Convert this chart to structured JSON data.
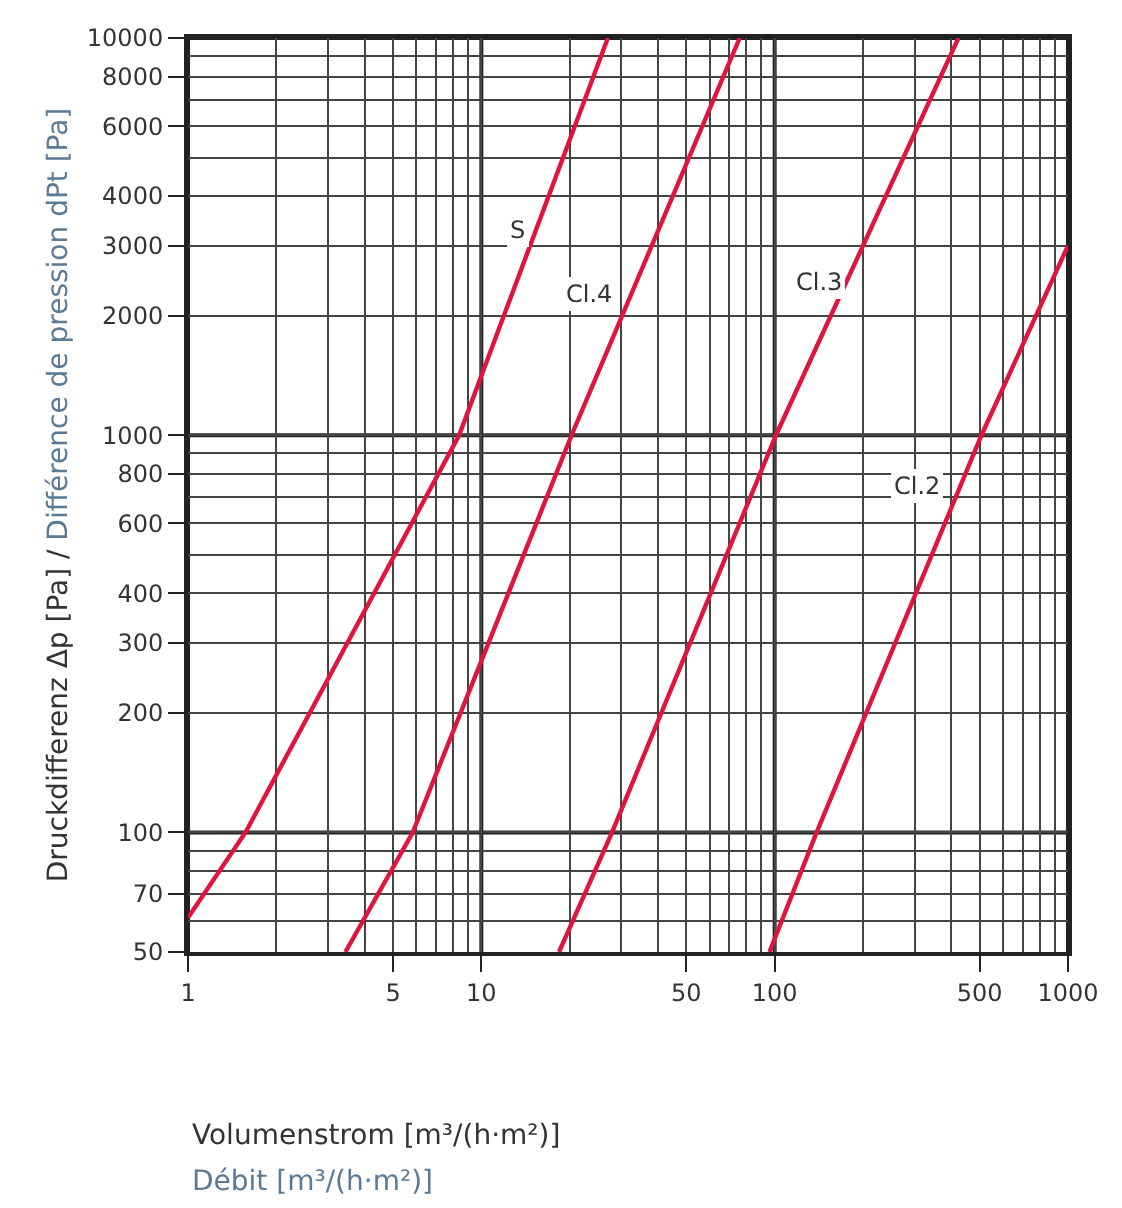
{
  "chart_data": {
    "type": "line",
    "xlabel": "Volumenstrom [m³/(h·m²)]\nDébit [m³/(h·m²)]",
    "ylabel": "Druckdifferenz Δp [Pa] / Différence de pression dPt [Pa]",
    "log": "xy",
    "grid": true,
    "marker": "none",
    "line_style": "solid",
    "xlim": [
      1,
      1000
    ],
    "xticks": [
      1,
      5,
      10,
      50,
      100,
      500,
      1000
    ],
    "ylim": [
      50,
      10000
    ],
    "yticks": [
      50,
      70,
      100,
      200,
      300,
      400,
      600,
      800,
      1000,
      2000,
      3000,
      4000,
      6000,
      8000,
      10000
    ],
    "series": [
      {
        "color": "#e0143c",
        "x": [
          1,
          1.57,
          8.4,
          27
        ],
        "values": [
          61,
          100,
          1000,
          10000
        ]
      },
      {
        "color": "#e0143c",
        "x": [
          3.44,
          5.84,
          20.3,
          76
        ],
        "values": [
          50,
          100,
          1000,
          10000
        ]
      },
      {
        "color": "#e0143c",
        "x": [
          18.4,
          27.9,
          101,
          423
        ],
        "values": [
          50,
          100,
          1000,
          10000
        ]
      },
      {
        "color": "#e0143c",
        "x": [
          96,
          139,
          507,
          1000
        ],
        "values": [
          50,
          100,
          1000,
          3000
        ]
      }
    ],
    "annotations": [
      {
        "text": "S",
        "x": 13.4,
        "y": 3300
      },
      {
        "text": "Cl.4",
        "x": 23.3,
        "y": 2280
      },
      {
        "text": "Cl.3",
        "x": 141,
        "y": 2420
      },
      {
        "text": "Cl.2",
        "x": 308,
        "y": 743
      }
    ]
  }
}
